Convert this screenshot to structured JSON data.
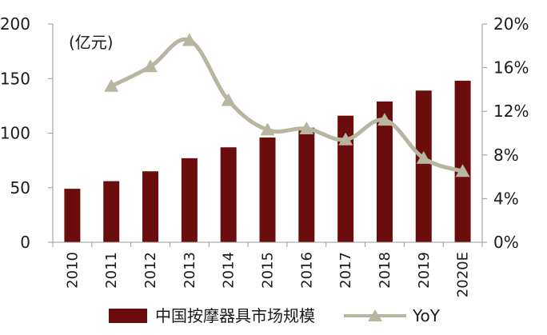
{
  "chart_data": {
    "type": "bar",
    "categories": [
      "2010",
      "2011",
      "2012",
      "2013",
      "2014",
      "2015",
      "2016",
      "2017",
      "2018",
      "2019",
      "2020E"
    ],
    "unit_label": "(亿元)",
    "series": [
      {
        "name": "中国按摩器具市场规模",
        "type": "bar",
        "axis": "left",
        "color": "#6b0d0d",
        "values": [
          49,
          56,
          65,
          77,
          87,
          96,
          105,
          116,
          129,
          139,
          148
        ]
      },
      {
        "name": "YoY",
        "type": "line",
        "axis": "right",
        "color": "#b8b5a0",
        "marker": "triangle",
        "values": [
          null,
          14.3,
          16.1,
          18.5,
          13.0,
          10.3,
          10.4,
          9.4,
          11.2,
          7.7,
          6.5
        ]
      }
    ],
    "y_left": {
      "ylim": [
        0,
        200
      ],
      "ticks": [
        "0",
        "50",
        "100",
        "150",
        "200"
      ]
    },
    "y_right": {
      "ylim": [
        0,
        20
      ],
      "ticks": [
        "0%",
        "4%",
        "8%",
        "12%",
        "16%",
        "20%"
      ]
    },
    "grid": false,
    "legend_position": "bottom"
  }
}
